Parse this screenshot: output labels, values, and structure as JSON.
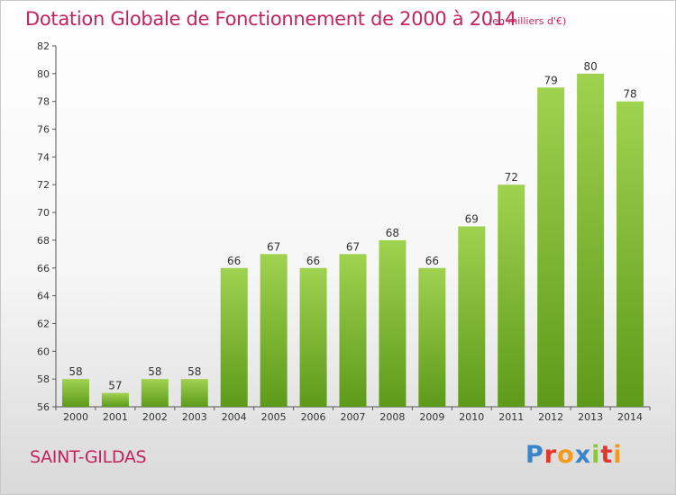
{
  "chart": {
    "title": "Dotation Globale de Fonctionnement de 2000 à 2014",
    "unit": "(en milliers d'€)",
    "commune": "SAINT-GILDAS",
    "logo": [
      "P",
      "r",
      "o",
      "x",
      "i",
      "t",
      "i"
    ]
  },
  "chart_data": {
    "type": "bar",
    "title": "Dotation Globale de Fonctionnement de 2000 à 2014",
    "subtitle": "(en milliers d'€)",
    "categories": [
      "2000",
      "2001",
      "2002",
      "2003",
      "2004",
      "2005",
      "2006",
      "2007",
      "2008",
      "2009",
      "2010",
      "2011",
      "2012",
      "2013",
      "2014"
    ],
    "values": [
      58,
      57,
      58,
      58,
      66,
      67,
      66,
      67,
      68,
      66,
      69,
      72,
      79,
      80,
      78
    ],
    "ylim": [
      56,
      82
    ],
    "yticks": [
      56,
      58,
      60,
      62,
      64,
      66,
      68,
      70,
      72,
      74,
      76,
      78,
      80,
      82
    ],
    "grid": false,
    "bar_color": "#7fba38",
    "bar_color_light": "#9fd24f",
    "bar_color_dark": "#5e9a1a"
  }
}
